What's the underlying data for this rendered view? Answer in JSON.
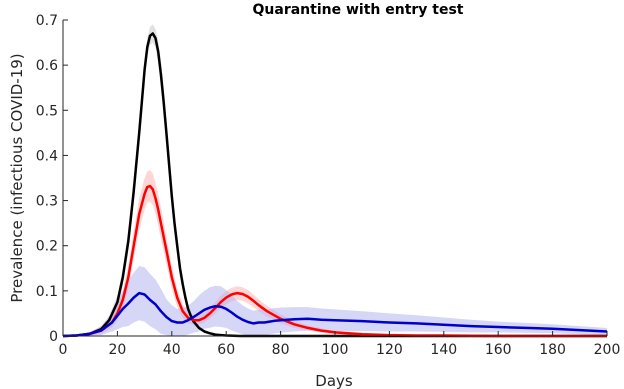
{
  "chart_data": {
    "type": "line",
    "title": "Quarantine with entry test",
    "xlabel": "Days",
    "ylabel": "Prevalence (infectious COVID-19)",
    "xlim": [
      0,
      200
    ],
    "ylim": [
      0,
      0.7
    ],
    "xticks": [
      "0",
      "20",
      "40",
      "60",
      "80",
      "100",
      "120",
      "140",
      "160",
      "180",
      "200"
    ],
    "yticks": [
      "0",
      "0.1",
      "0.2",
      "0.3",
      "0.4",
      "0.5",
      "0.6",
      "0.7"
    ],
    "grid": false,
    "legend": "none",
    "series": [
      {
        "color": "#000000",
        "band_color": "#c8c8c8",
        "x": [
          0,
          5,
          10,
          14,
          17,
          20,
          22,
          24,
          26,
          28,
          29,
          30,
          31,
          32,
          33,
          34,
          35,
          36,
          37,
          38,
          39,
          40,
          41,
          42,
          43,
          44,
          45,
          46,
          47,
          48,
          50,
          52,
          54,
          56,
          58,
          60,
          65,
          70,
          80,
          100,
          150,
          200
        ],
        "y": [
          0,
          0.001,
          0.005,
          0.015,
          0.035,
          0.075,
          0.13,
          0.21,
          0.32,
          0.45,
          0.52,
          0.59,
          0.64,
          0.665,
          0.67,
          0.66,
          0.63,
          0.58,
          0.52,
          0.45,
          0.38,
          0.31,
          0.25,
          0.2,
          0.15,
          0.115,
          0.085,
          0.06,
          0.045,
          0.032,
          0.018,
          0.01,
          0.006,
          0.003,
          0.002,
          0.001,
          0,
          0,
          0,
          0,
          0,
          0
        ],
        "band": [
          0,
          0.001,
          0.003,
          0.006,
          0.01,
          0.015,
          0.02,
          0.025,
          0.03,
          0.03,
          0.03,
          0.025,
          0.02,
          0.02,
          0.02,
          0.02,
          0.025,
          0.03,
          0.03,
          0.03,
          0.03,
          0.025,
          0.025,
          0.02,
          0.02,
          0.015,
          0.012,
          0.01,
          0.008,
          0.006,
          0.004,
          0.003,
          0.002,
          0.001,
          0.001,
          0.001,
          0,
          0,
          0,
          0,
          0,
          0
        ]
      },
      {
        "color": "#ff0000",
        "band_color": "#ffb4b4",
        "x": [
          0,
          5,
          10,
          14,
          18,
          20,
          22,
          24,
          26,
          28,
          30,
          31,
          32,
          33,
          34,
          35,
          36,
          38,
          40,
          42,
          44,
          46,
          48,
          50,
          52,
          54,
          56,
          58,
          60,
          62,
          64,
          66,
          68,
          70,
          72,
          75,
          80,
          85,
          90,
          95,
          100,
          110,
          120,
          130,
          140,
          160,
          200
        ],
        "y": [
          0,
          0.001,
          0.005,
          0.012,
          0.03,
          0.05,
          0.08,
          0.13,
          0.2,
          0.27,
          0.315,
          0.33,
          0.332,
          0.325,
          0.305,
          0.28,
          0.25,
          0.19,
          0.13,
          0.085,
          0.055,
          0.04,
          0.035,
          0.035,
          0.04,
          0.05,
          0.062,
          0.075,
          0.085,
          0.092,
          0.095,
          0.093,
          0.087,
          0.078,
          0.068,
          0.055,
          0.038,
          0.026,
          0.018,
          0.012,
          0.008,
          0.004,
          0.002,
          0.001,
          0.001,
          0,
          0
        ],
        "band": [
          0,
          0.001,
          0.004,
          0.008,
          0.012,
          0.015,
          0.02,
          0.025,
          0.03,
          0.035,
          0.035,
          0.035,
          0.035,
          0.035,
          0.035,
          0.035,
          0.035,
          0.03,
          0.025,
          0.02,
          0.015,
          0.012,
          0.01,
          0.01,
          0.01,
          0.012,
          0.013,
          0.014,
          0.015,
          0.015,
          0.015,
          0.015,
          0.015,
          0.014,
          0.013,
          0.012,
          0.01,
          0.008,
          0.006,
          0.005,
          0.004,
          0.003,
          0.002,
          0.001,
          0.001,
          0,
          0
        ]
      },
      {
        "color": "#0000cc",
        "band_color": "#b4b4f0",
        "x": [
          0,
          5,
          10,
          14,
          18,
          20,
          22,
          24,
          26,
          28,
          30,
          32,
          34,
          36,
          38,
          40,
          42,
          44,
          46,
          48,
          50,
          52,
          54,
          56,
          58,
          60,
          62,
          64,
          66,
          68,
          70,
          72,
          74,
          76,
          78,
          80,
          85,
          90,
          95,
          100,
          110,
          120,
          130,
          140,
          150,
          160,
          170,
          180,
          190,
          200
        ],
        "y": [
          0,
          0.001,
          0.005,
          0.012,
          0.03,
          0.045,
          0.06,
          0.072,
          0.085,
          0.095,
          0.092,
          0.08,
          0.07,
          0.055,
          0.042,
          0.033,
          0.03,
          0.03,
          0.035,
          0.042,
          0.05,
          0.058,
          0.063,
          0.066,
          0.065,
          0.06,
          0.052,
          0.043,
          0.036,
          0.031,
          0.028,
          0.03,
          0.03,
          0.032,
          0.034,
          0.035,
          0.037,
          0.038,
          0.036,
          0.035,
          0.033,
          0.03,
          0.028,
          0.025,
          0.022,
          0.02,
          0.018,
          0.016,
          0.013,
          0.01
        ],
        "band": [
          0,
          0.001,
          0.004,
          0.01,
          0.02,
          0.03,
          0.04,
          0.05,
          0.055,
          0.06,
          0.06,
          0.058,
          0.055,
          0.05,
          0.04,
          0.035,
          0.03,
          0.03,
          0.032,
          0.035,
          0.04,
          0.042,
          0.045,
          0.045,
          0.045,
          0.042,
          0.04,
          0.035,
          0.032,
          0.03,
          0.028,
          0.028,
          0.028,
          0.028,
          0.028,
          0.028,
          0.027,
          0.026,
          0.025,
          0.024,
          0.022,
          0.02,
          0.018,
          0.016,
          0.014,
          0.012,
          0.011,
          0.01,
          0.009,
          0.008
        ]
      }
    ]
  }
}
